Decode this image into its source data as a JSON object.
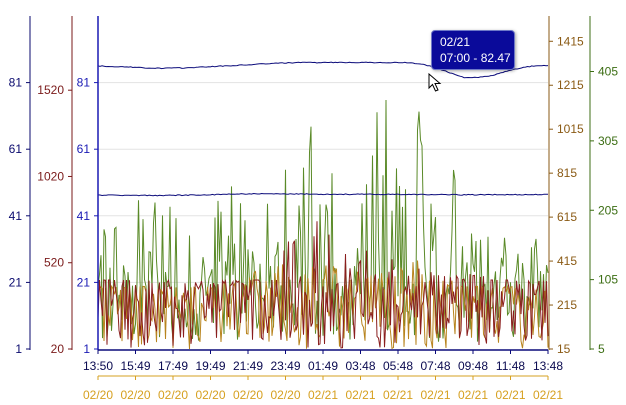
{
  "chart_data": {
    "type": "line",
    "title": "",
    "grid": true,
    "x": {
      "time_ticks": [
        "13:50",
        "15:49",
        "17:49",
        "19:49",
        "21:49",
        "23:49",
        "01:49",
        "03:48",
        "05:48",
        "07:48",
        "09:48",
        "11:48",
        "13:48"
      ],
      "date_ticks": [
        "02/20",
        "02/20",
        "02/20",
        "02/20",
        "02/20",
        "02/20",
        "02/21",
        "02/21",
        "02/21",
        "02/21",
        "02/21",
        "02/21",
        "02/21"
      ]
    },
    "axes": [
      {
        "id": "left_outer",
        "color": "#0a0a6e",
        "range": [
          1,
          101
        ],
        "ticks": [
          1,
          21,
          41,
          61,
          81
        ]
      },
      {
        "id": "left_mid",
        "color": "#7a1a1a",
        "range": [
          20,
          1950
        ],
        "ticks": [
          20,
          520,
          1020,
          1520
        ]
      },
      {
        "id": "left_inner",
        "color": "#1a1ab4",
        "range": [
          1,
          101
        ],
        "ticks": [
          1,
          21,
          41,
          61,
          81
        ]
      },
      {
        "id": "right_inner",
        "color": "#8a5a14",
        "range": [
          15,
          1530
        ],
        "ticks": [
          15,
          215,
          415,
          615,
          815,
          1015,
          1215,
          1415
        ]
      },
      {
        "id": "right_outer",
        "color": "#3c6e14",
        "range": [
          5,
          485
        ],
        "ticks": [
          5,
          105,
          205,
          305,
          405
        ]
      }
    ],
    "series": [
      {
        "axis": "left_inner",
        "color": "#0a0a7a",
        "points": [
          [
            0,
            86
          ],
          [
            2,
            85.7
          ],
          [
            4,
            85.3
          ],
          [
            6,
            85.4
          ],
          [
            8,
            85.8
          ],
          [
            10,
            86.2
          ],
          [
            12,
            86.7
          ],
          [
            14,
            87.0
          ],
          [
            16,
            87.0
          ],
          [
            18,
            87.1
          ],
          [
            20,
            87.0
          ],
          [
            22,
            87.0
          ],
          [
            23,
            86.6
          ],
          [
            24,
            85.5
          ],
          [
            25,
            84.0
          ],
          [
            26,
            82.6
          ],
          [
            27,
            82.5
          ],
          [
            28,
            83.1
          ],
          [
            29,
            84.3
          ],
          [
            30,
            85.4
          ],
          [
            31,
            86.0
          ],
          [
            32,
            86.2
          ]
        ]
      },
      {
        "axis": "left_inner",
        "color": "#0a0a7a",
        "points": [
          [
            0,
            47.2
          ],
          [
            4,
            47.1
          ],
          [
            8,
            47.3
          ],
          [
            10,
            47.6
          ],
          [
            16,
            47.5
          ],
          [
            22,
            47.4
          ],
          [
            26,
            47.3
          ],
          [
            32,
            47.4
          ]
        ]
      },
      {
        "axis": "right_outer",
        "color": "#5a8a28",
        "band": {
          "base": [
            15,
            125
          ],
          "peaks": [
            185,
            265,
            250,
            195,
            240,
            225,
            270,
            330,
            275,
            370,
            365,
            285,
            185,
            175,
            165
          ]
        }
      },
      {
        "axis": "left_mid",
        "color": "#8a1e1e",
        "band": {
          "base": [
            25,
            420
          ],
          "peaks": [
            420,
            380,
            400,
            360,
            380,
            420,
            680,
            820,
            600,
            540,
            560,
            480,
            460,
            420,
            380
          ]
        }
      },
      {
        "axis": "right_inner",
        "color": "#b8841e",
        "band": {
          "base": [
            15,
            300
          ],
          "peaks": [
            280,
            300,
            280,
            290,
            320,
            380,
            420,
            400,
            380,
            360,
            420,
            340,
            300,
            290,
            260
          ]
        }
      }
    ],
    "tooltip": {
      "date": "02/21",
      "text": "07:00 - 82.47"
    }
  }
}
